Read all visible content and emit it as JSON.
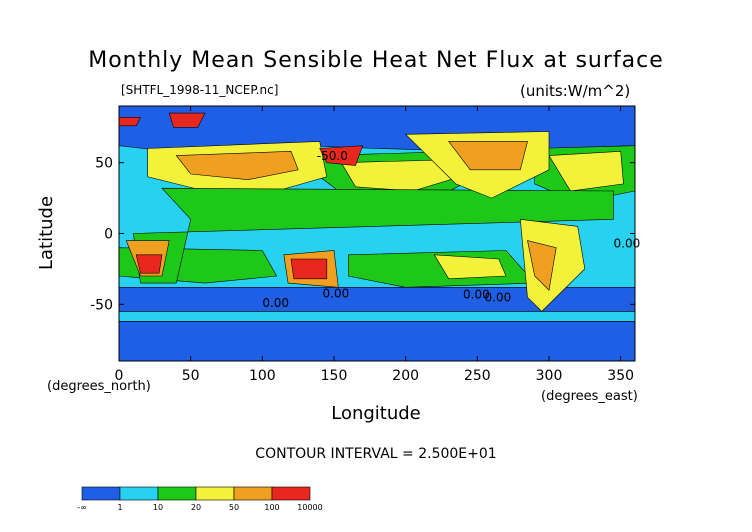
{
  "chart_data": {
    "type": "heatmap",
    "title": "Monthly Mean Sensible Heat Net Flux at surface",
    "subtitle": "[SHTFL_1998-11_NCEP.nc]",
    "units": "(units:W/m^2)",
    "xlabel": "Longitude",
    "ylabel": "Latitude",
    "x_unit_label": "(degrees_east)",
    "y_unit_label": "(degrees_north)",
    "xlim": [
      0,
      360
    ],
    "ylim": [
      -90,
      90
    ],
    "x_ticks": [
      "0",
      "50",
      "100",
      "150",
      "200",
      "250",
      "300",
      "350"
    ],
    "x_tick_values": [
      0,
      50,
      100,
      150,
      200,
      250,
      300,
      350
    ],
    "y_ticks": [
      "50",
      "0",
      "-50"
    ],
    "y_tick_values": [
      50,
      0,
      -50
    ],
    "contour_interval": "CONTOUR INTERVAL = 2.500E+01",
    "contour_labels": [
      "-50.0",
      "0.00",
      "0.00",
      "0.00",
      "0.00",
      "0.00"
    ],
    "colorbar": {
      "labels": [
        "-∞",
        "1",
        "10",
        "20",
        "50",
        "100",
        "10000"
      ],
      "colors": [
        "#1f5fe6",
        "#27d2f0",
        "#1ec818",
        "#f2f23a",
        "#f0a020",
        "#e8281e"
      ]
    }
  }
}
